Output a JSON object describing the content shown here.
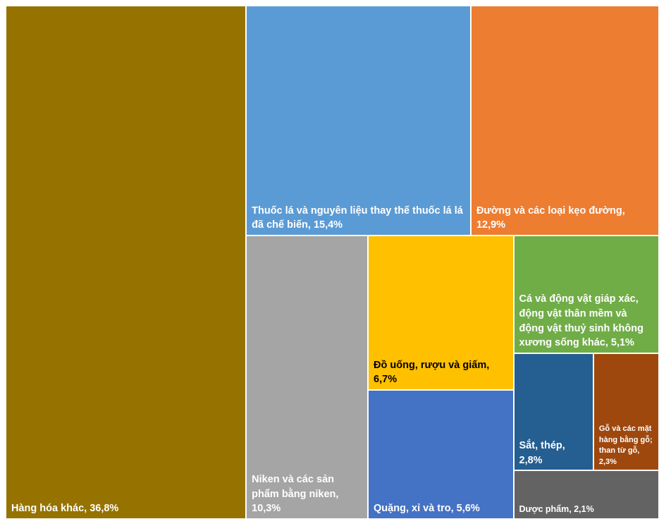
{
  "chart_data": {
    "type": "treemap",
    "categories": [
      "Hàng hóa khác, 36,8%",
      "Thuốc lá và nguyên liệu thay thế thuốc lá lá đã chế biến, 15,4%",
      "Đường và các loại kẹo đường, 12,9%",
      "Niken và các sản phẩm bằng niken, 10,3%",
      "Đồ uống, rượu và giấm, 6,7%",
      "Quặng, xỉ và tro, 5,6%",
      "Cá và động vật giáp xác, động vật thân mềm và động vật thuỷ sinh không xương sống khác, 5,1%",
      "Sắt, thép, 2,8%",
      "Gỗ và các mặt hàng bằng gỗ; than từ gỗ, 2,3%",
      "Dược phẩm, 2,1%"
    ],
    "values": [
      36.8,
      15.4,
      12.9,
      10.3,
      6.7,
      5.6,
      5.1,
      2.8,
      2.3,
      2.1
    ],
    "colors": [
      "#967300",
      "#5b9bd5",
      "#ed7d31",
      "#a5a5a5",
      "#ffc000",
      "#4472c4",
      "#70ad47",
      "#255e91",
      "#9e480e",
      "#636363"
    ]
  }
}
